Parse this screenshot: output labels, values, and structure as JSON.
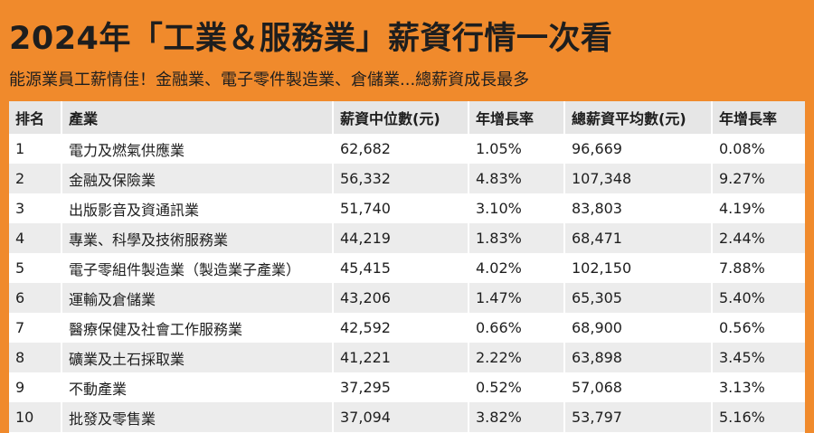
{
  "header": {
    "title": "2024年「工業＆服務業」薪資行情一次看",
    "subtitle": "能源業員工薪情佳！金融業、電子零件製造業、倉儲業...總薪資成長最多"
  },
  "table": {
    "columns": [
      "排名",
      "產業",
      "薪資中位數(元)",
      "年增長率",
      "總薪資平均數(元)",
      "年增長率"
    ],
    "rows": [
      [
        "1",
        "電力及燃氣供應業",
        "62,682",
        "1.05%",
        "96,669",
        "0.08%"
      ],
      [
        "2",
        "金融及保險業",
        "56,332",
        "4.83%",
        "107,348",
        "9.27%"
      ],
      [
        "3",
        "出版影音及資通訊業",
        "51,740",
        "3.10%",
        "83,803",
        "4.19%"
      ],
      [
        "4",
        "專業、科學及技術服務業",
        "44,219",
        "1.83%",
        "68,471",
        "2.44%"
      ],
      [
        "5",
        "電子零組件製造業（製造業子產業）",
        "45,415",
        "4.02%",
        "102,150",
        "7.88%"
      ],
      [
        "6",
        "運輸及倉儲業",
        "43,206",
        "1.47%",
        "65,305",
        "5.40%"
      ],
      [
        "7",
        "醫療保健及社會工作服務業",
        "42,592",
        "0.66%",
        "68,900",
        "0.56%"
      ],
      [
        "8",
        "礦業及土石採取業",
        "41,221",
        "2.22%",
        "63,898",
        "3.45%"
      ],
      [
        "9",
        "不動產業",
        "37,295",
        "0.52%",
        "57,068",
        "3.13%"
      ],
      [
        "10",
        "批發及零售業",
        "37,094",
        "3.82%",
        "53,797",
        "5.16%"
      ]
    ]
  }
}
